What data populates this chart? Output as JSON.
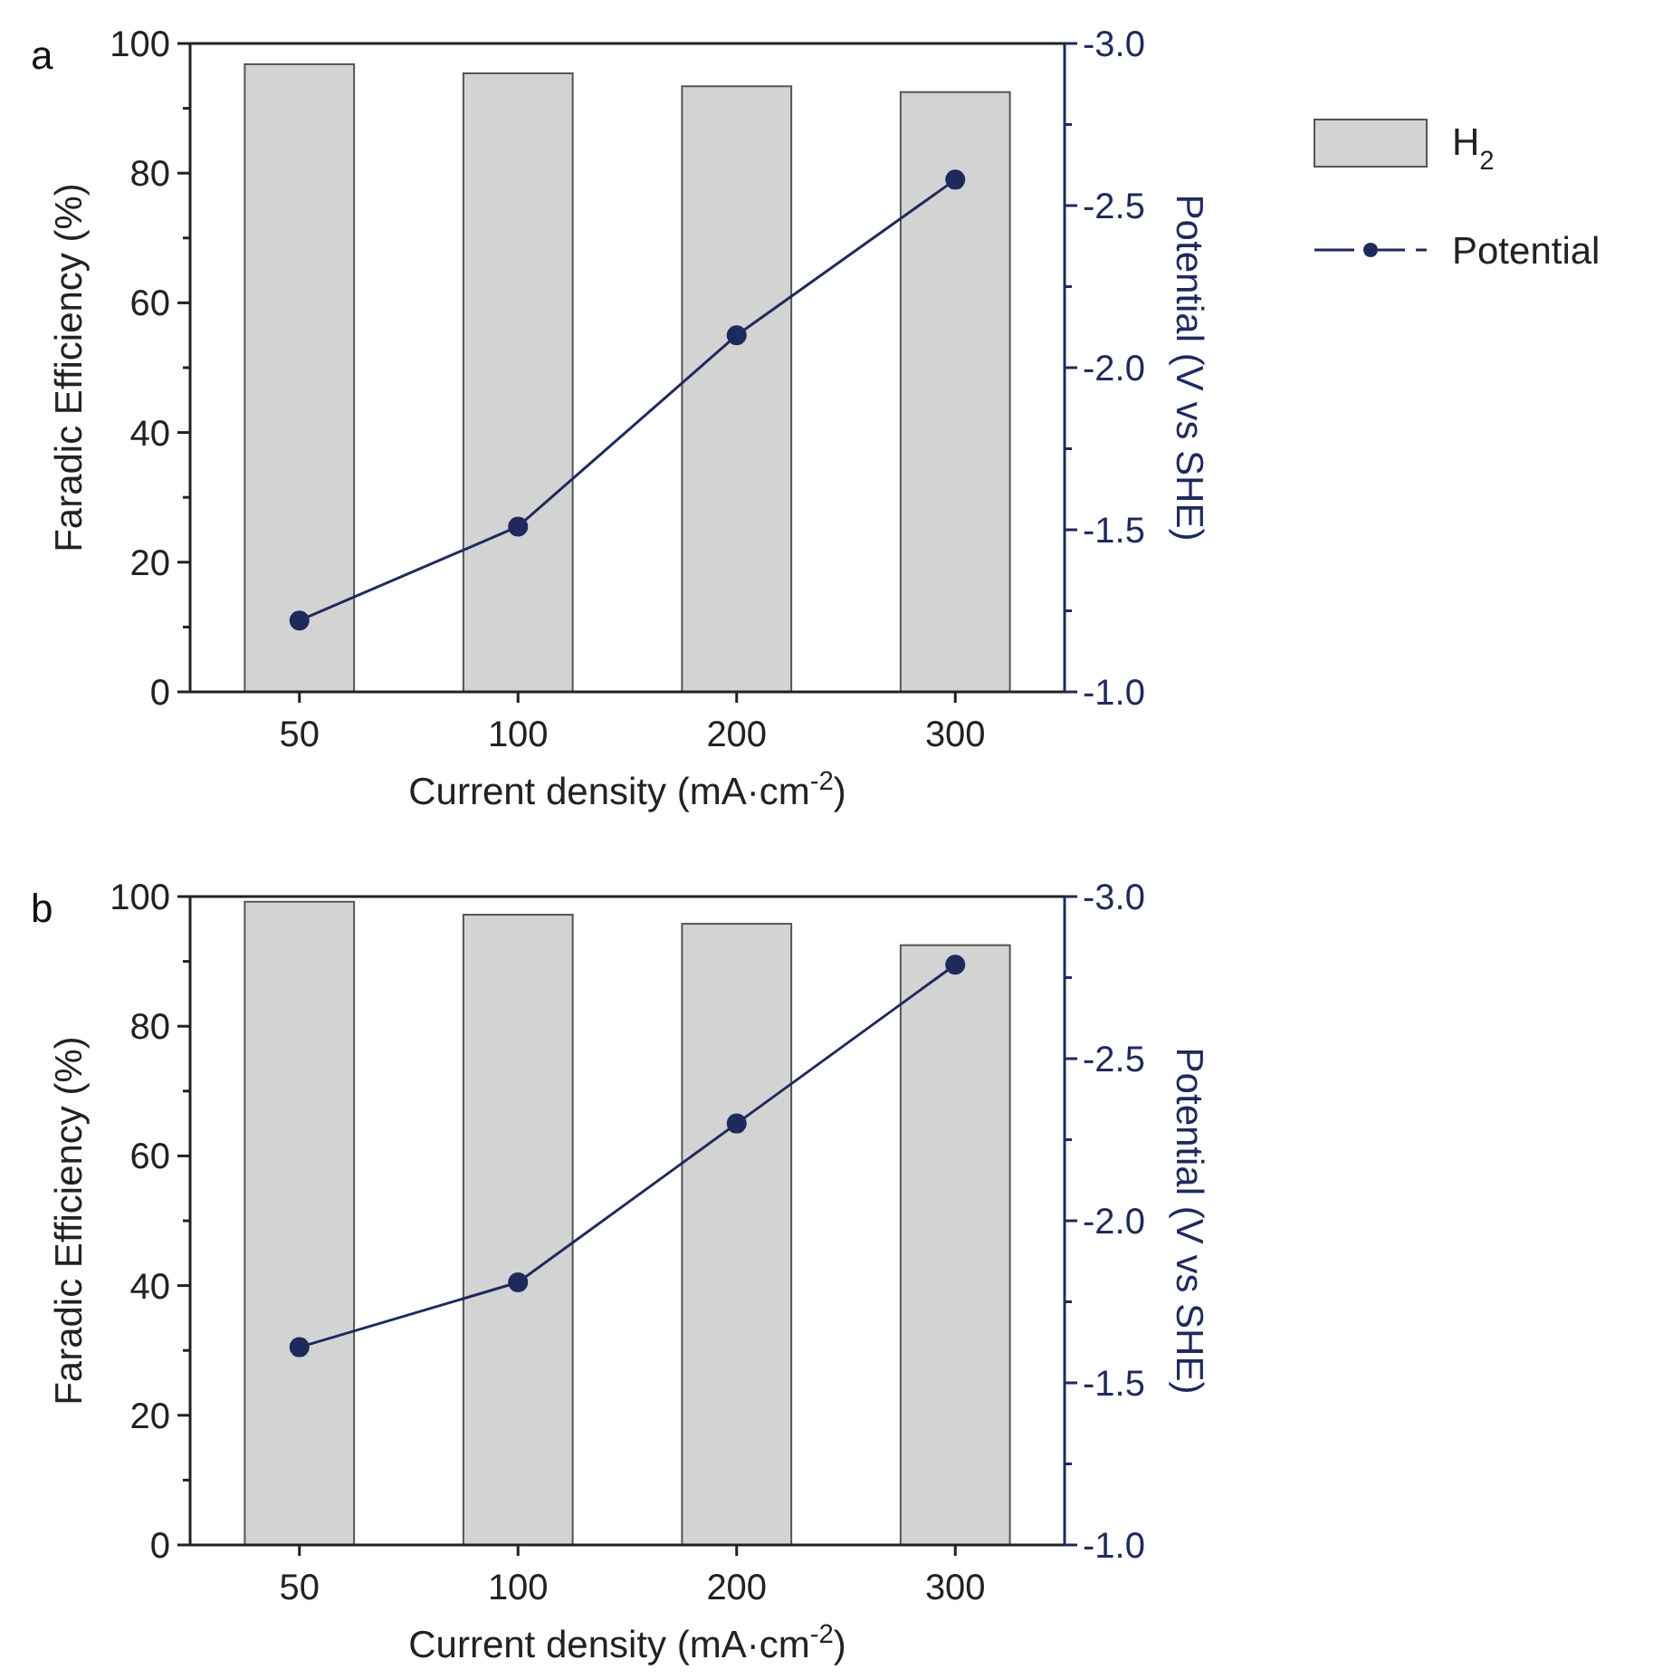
{
  "chart_data": [
    {
      "type": "bar",
      "title": "a",
      "categories": [
        "50",
        "100",
        "200",
        "300"
      ],
      "xlabel": "Current density (mA·cm$^{-2}$)",
      "ylabel": "Faradic Efficiency (%)",
      "y2label": "Potential (V vs SHE)",
      "series": [
        {
          "name": "H$_{2}$",
          "color": "#d3d3d3",
          "values": [
            96.8,
            95.4,
            93.4,
            92.5
          ]
        },
        {
          "type": "line",
          "axis": "y2",
          "name": "Potential",
          "color": "#1f2a5c",
          "values": [
            -1.22,
            -1.51,
            -2.1,
            -2.58
          ]
        }
      ],
      "ylim": [
        0,
        100
      ],
      "yticks": [
        0,
        {
          "value": 10,
          "label": null
        },
        20,
        {
          "value": 30,
          "label": null
        },
        40,
        {
          "value": 50,
          "label": null
        },
        60,
        {
          "value": 70,
          "label": null
        },
        80,
        {
          "value": 90,
          "label": null
        },
        100
      ],
      "y2lim": [
        -1,
        -3
      ],
      "y2ticks": [
        {
          "value": -1,
          "label": "-1.0"
        },
        {
          "value": -1.25,
          "label": null
        },
        {
          "value": -1.5,
          "label": "-1.5"
        },
        {
          "value": -1.75,
          "label": null
        },
        {
          "value": -2,
          "label": "-2.0"
        },
        {
          "value": -2.25,
          "label": null
        },
        {
          "value": -2.5,
          "label": "-2.5"
        },
        {
          "value": -2.75,
          "label": null
        },
        {
          "value": -3,
          "label": "-3.0"
        }
      ],
      "marker": "circle",
      "line_style": "solid",
      "legend": "right",
      "grid": false
    },
    {
      "type": "bar",
      "title": "b",
      "categories": [
        "50",
        "100",
        "200",
        "300"
      ],
      "xlabel": "Current density (mA·cm$^{-2}$)",
      "ylabel": "Faradic Efficiency (%)",
      "y2label": "Potential (V vs SHE)",
      "series": [
        {
          "color": "#d3d3d3",
          "values": [
            99.2,
            97.2,
            95.8,
            92.5
          ]
        },
        {
          "type": "line",
          "axis": "y2",
          "color": "#1f2a5c",
          "values": [
            -1.61,
            -1.81,
            -2.3,
            -2.79
          ]
        }
      ],
      "ylim": [
        0,
        100
      ],
      "yticks": [
        0,
        {
          "value": 10,
          "label": null
        },
        20,
        {
          "value": 30,
          "label": null
        },
        40,
        {
          "value": 50,
          "label": null
        },
        60,
        {
          "value": 70,
          "label": null
        },
        80,
        {
          "value": 90,
          "label": null
        },
        100
      ],
      "y2lim": [
        -1,
        -3
      ],
      "y2ticks": [
        {
          "value": -1,
          "label": "-1.0"
        },
        {
          "value": -1.25,
          "label": null
        },
        {
          "value": -1.5,
          "label": "-1.5"
        },
        {
          "value": -1.75,
          "label": null
        },
        {
          "value": -2,
          "label": "-2.0"
        },
        {
          "value": -2.25,
          "label": null
        },
        {
          "value": -2.5,
          "label": "-2.5"
        },
        {
          "value": -2.75,
          "label": null
        },
        {
          "value": -3,
          "label": "-3.0"
        }
      ],
      "marker": "circle",
      "line_style": "solid",
      "legend": false,
      "grid": false
    }
  ]
}
